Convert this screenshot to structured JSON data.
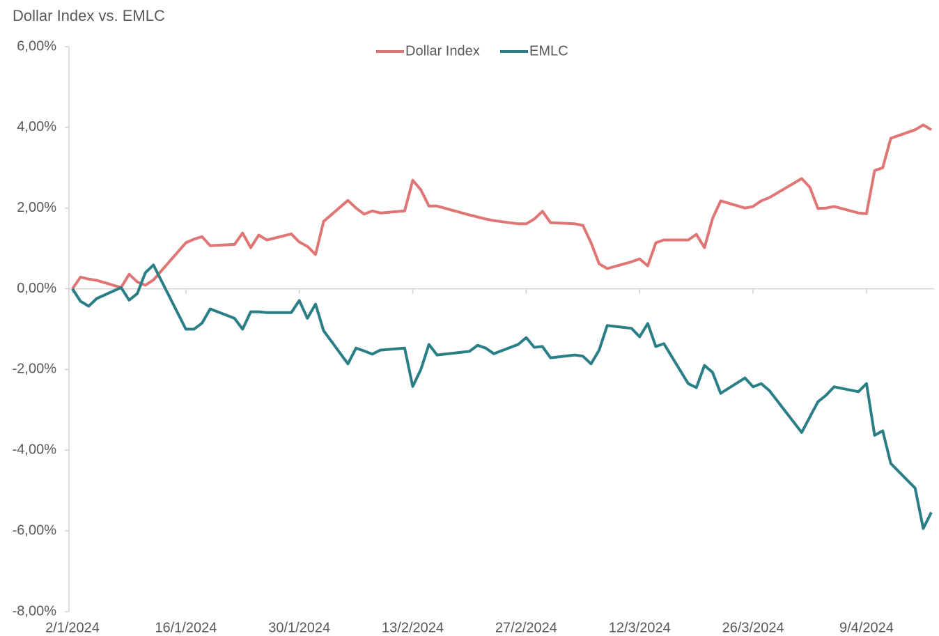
{
  "chart_data": {
    "type": "line",
    "title": "Dollar Index vs. EMLC",
    "x": [
      "2024-01-02",
      "2024-01-03",
      "2024-01-04",
      "2024-01-05",
      "2024-01-08",
      "2024-01-09",
      "2024-01-10",
      "2024-01-11",
      "2024-01-12",
      "2024-01-16",
      "2024-01-17",
      "2024-01-18",
      "2024-01-19",
      "2024-01-22",
      "2024-01-23",
      "2024-01-24",
      "2024-01-25",
      "2024-01-26",
      "2024-01-29",
      "2024-01-30",
      "2024-01-31",
      "2024-02-01",
      "2024-02-02",
      "2024-02-05",
      "2024-02-06",
      "2024-02-07",
      "2024-02-08",
      "2024-02-09",
      "2024-02-12",
      "2024-02-13",
      "2024-02-14",
      "2024-02-15",
      "2024-02-16",
      "2024-02-20",
      "2024-02-21",
      "2024-02-22",
      "2024-02-23",
      "2024-02-26",
      "2024-02-27",
      "2024-02-28",
      "2024-02-29",
      "2024-03-01",
      "2024-03-04",
      "2024-03-05",
      "2024-03-06",
      "2024-03-07",
      "2024-03-08",
      "2024-03-11",
      "2024-03-12",
      "2024-03-13",
      "2024-03-14",
      "2024-03-15",
      "2024-03-18",
      "2024-03-19",
      "2024-03-20",
      "2024-03-21",
      "2024-03-22",
      "2024-03-25",
      "2024-03-26",
      "2024-03-27",
      "2024-03-28",
      "2024-04-01",
      "2024-04-02",
      "2024-04-03",
      "2024-04-04",
      "2024-04-05",
      "2024-04-08",
      "2024-04-09",
      "2024-04-10",
      "2024-04-11",
      "2024-04-12",
      "2024-04-15",
      "2024-04-16",
      "2024-04-17"
    ],
    "series": [
      {
        "name": "Dollar Index",
        "color": "#e07575",
        "values": [
          0,
          0.29,
          0.24,
          0.21,
          0.03,
          0.36,
          0.17,
          0.09,
          0.22,
          1.14,
          1.23,
          1.29,
          1.07,
          1.1,
          1.38,
          1.02,
          1.33,
          1.21,
          1.36,
          1.16,
          1.05,
          0.85,
          1.67,
          2.19,
          2.0,
          1.85,
          1.93,
          1.88,
          1.93,
          2.69,
          2.45,
          2.05,
          2.05,
          1.83,
          1.78,
          1.73,
          1.69,
          1.61,
          1.61,
          1.73,
          1.92,
          1.64,
          1.61,
          1.57,
          1.14,
          0.62,
          0.5,
          0.67,
          0.74,
          0.57,
          1.14,
          1.21,
          1.21,
          1.35,
          1.02,
          1.74,
          2.18,
          2.0,
          2.04,
          2.18,
          2.26,
          2.73,
          2.52,
          1.99,
          2.0,
          2.04,
          1.88,
          1.86,
          2.93,
          3.0,
          3.73,
          3.94,
          4.06,
          3.94
        ]
      },
      {
        "name": "EMLC",
        "color": "#2a7f87",
        "values": [
          0,
          -0.31,
          -0.43,
          -0.24,
          0.03,
          -0.28,
          -0.12,
          0.4,
          0.59,
          -1.0,
          -1.0,
          -0.85,
          -0.5,
          -0.73,
          -1.0,
          -0.57,
          -0.57,
          -0.59,
          -0.59,
          -0.29,
          -0.73,
          -0.38,
          -1.04,
          -1.86,
          -1.47,
          -1.54,
          -1.62,
          -1.52,
          -1.47,
          -2.42,
          -2.0,
          -1.38,
          -1.64,
          -1.55,
          -1.4,
          -1.47,
          -1.61,
          -1.38,
          -1.21,
          -1.45,
          -1.43,
          -1.71,
          -1.64,
          -1.67,
          -1.86,
          -1.52,
          -0.91,
          -0.98,
          -1.19,
          -0.86,
          -1.43,
          -1.36,
          -2.35,
          -2.45,
          -1.9,
          -2.07,
          -2.59,
          -2.21,
          -2.43,
          -2.35,
          -2.52,
          -3.56,
          -3.18,
          -2.8,
          -2.64,
          -2.43,
          -2.55,
          -2.35,
          -3.63,
          -3.52,
          -4.33,
          -4.94,
          -5.94,
          -5.54
        ]
      }
    ],
    "xlim": [
      "2024-01-02",
      "2024-04-17"
    ],
    "xticks": [
      {
        "value": "2024-01-02",
        "label": "2/1/2024"
      },
      {
        "value": "2024-01-16",
        "label": "16/1/2024"
      },
      {
        "value": "2024-01-30",
        "label": "30/1/2024"
      },
      {
        "value": "2024-02-13",
        "label": "13/2/2024"
      },
      {
        "value": "2024-02-27",
        "label": "27/2/2024"
      },
      {
        "value": "2024-03-12",
        "label": "12/3/2024"
      },
      {
        "value": "2024-03-26",
        "label": "26/3/2024"
      },
      {
        "value": "2024-04-09",
        "label": "9/4/2024"
      }
    ],
    "ylim": [
      -8,
      6
    ],
    "yticks": [
      {
        "value": -8,
        "label": "-8,00%"
      },
      {
        "value": -6,
        "label": "-6,00%"
      },
      {
        "value": -4,
        "label": "-4,00%"
      },
      {
        "value": -2,
        "label": "-2,00%"
      },
      {
        "value": 0,
        "label": "0,00%"
      },
      {
        "value": 2,
        "label": "2,00%"
      },
      {
        "value": 4,
        "label": "4,00%"
      },
      {
        "value": 6,
        "label": "6,00%"
      }
    ],
    "grid": false,
    "legend": "top"
  }
}
